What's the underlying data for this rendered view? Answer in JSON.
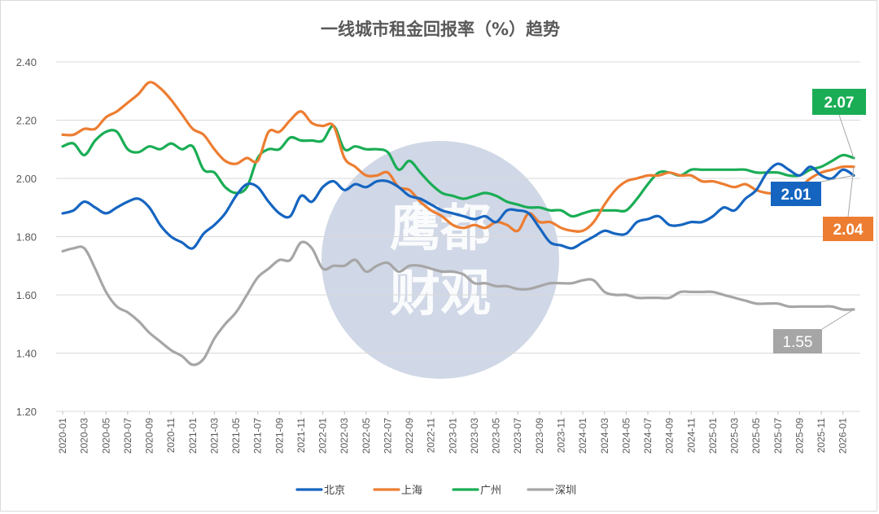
{
  "chart_data": {
    "type": "line",
    "title": "一线城市租金回报率（%）趋势",
    "ylim": [
      1.2,
      2.4
    ],
    "yticks": [
      "1.20",
      "1.40",
      "1.60",
      "1.80",
      "2.00",
      "2.20",
      "2.40"
    ],
    "grid": true,
    "legend_position": "bottom",
    "x": [
      "2020-01",
      "2020-02",
      "2020-03",
      "2020-04",
      "2020-05",
      "2020-06",
      "2020-07",
      "2020-08",
      "2020-09",
      "2020-10",
      "2020-11",
      "2020-12",
      "2021-01",
      "2021-02",
      "2021-03",
      "2021-04",
      "2021-05",
      "2021-06",
      "2021-07",
      "2021-08",
      "2021-09",
      "2021-10",
      "2021-11",
      "2021-12",
      "2022-01",
      "2022-02",
      "2022-03",
      "2022-04",
      "2022-05",
      "2022-06",
      "2022-07",
      "2022-08",
      "2022-09",
      "2022-10",
      "2022-11",
      "2022-12",
      "2023-01",
      "2023-02",
      "2023-03",
      "2023-04",
      "2023-05",
      "2023-06",
      "2023-07",
      "2023-08",
      "2023-09",
      "2023-10",
      "2023-11",
      "2023-12",
      "2024-01",
      "2024-02",
      "2024-03",
      "2024-04",
      "2024-05",
      "2024-06",
      "2024-07",
      "2024-08",
      "2024-09",
      "2024-10",
      "2024-11",
      "2024-12",
      "2025-01",
      "2025-02",
      "2025-03",
      "2025-04",
      "2025-05",
      "2025-06",
      "2025-07",
      "2025-08",
      "2025-09",
      "2025-10",
      "2025-11",
      "2025-12",
      "2026-01",
      "2026-02"
    ],
    "xtick_labels": [
      "2020-01",
      "2020-03",
      "2020-05",
      "2020-07",
      "2020-09",
      "2020-11",
      "2021-01",
      "2021-03",
      "2021-05",
      "2021-07",
      "2021-09",
      "2021-11",
      "2022-01",
      "2022-03",
      "2022-05",
      "2022-07",
      "2022-09",
      "2022-11",
      "2023-01",
      "2023-03",
      "2023-05",
      "2023-07",
      "2023-09",
      "2023-11",
      "2024-01",
      "2024-03",
      "2024-05",
      "2024-07",
      "2024-09",
      "2024-11",
      "2025-01",
      "2025-03",
      "2025-05",
      "2025-07",
      "2025-09",
      "2025-11",
      "2026-01"
    ],
    "series": [
      {
        "name": "北京",
        "color": "#1565c0",
        "end_label": "2.01",
        "values": [
          1.88,
          1.89,
          1.92,
          1.9,
          1.88,
          1.9,
          1.92,
          1.93,
          1.9,
          1.84,
          1.8,
          1.78,
          1.76,
          1.81,
          1.84,
          1.88,
          1.94,
          1.98,
          1.97,
          1.92,
          1.88,
          1.87,
          1.94,
          1.92,
          1.97,
          1.99,
          1.96,
          1.98,
          1.97,
          1.99,
          1.99,
          1.97,
          1.94,
          1.93,
          1.91,
          1.89,
          1.88,
          1.87,
          1.86,
          1.87,
          1.85,
          1.89,
          1.89,
          1.88,
          1.83,
          1.78,
          1.77,
          1.76,
          1.78,
          1.8,
          1.82,
          1.81,
          1.81,
          1.85,
          1.86,
          1.87,
          1.84,
          1.84,
          1.85,
          1.85,
          1.87,
          1.9,
          1.89,
          1.93,
          1.96,
          2.02,
          2.05,
          2.03,
          2.01,
          2.04,
          2.01,
          2.0,
          2.03,
          2.01
        ]
      },
      {
        "name": "上海",
        "color": "#ed7d31",
        "end_label": "2.04",
        "values": [
          2.15,
          2.15,
          2.17,
          2.17,
          2.21,
          2.23,
          2.26,
          2.29,
          2.33,
          2.31,
          2.27,
          2.22,
          2.17,
          2.15,
          2.1,
          2.06,
          2.05,
          2.07,
          2.06,
          2.16,
          2.16,
          2.2,
          2.23,
          2.19,
          2.18,
          2.18,
          2.07,
          2.04,
          2.01,
          2.01,
          2.02,
          1.97,
          1.96,
          1.92,
          1.89,
          1.87,
          1.84,
          1.83,
          1.84,
          1.83,
          1.85,
          1.84,
          1.82,
          1.88,
          1.85,
          1.85,
          1.83,
          1.82,
          1.82,
          1.85,
          1.91,
          1.96,
          1.99,
          2.0,
          2.01,
          2.01,
          2.02,
          2.01,
          2.01,
          1.99,
          1.99,
          1.98,
          1.97,
          1.98,
          1.96,
          1.95,
          1.95,
          1.96,
          1.97,
          2.0,
          2.02,
          2.03,
          2.04,
          2.04
        ]
      },
      {
        "name": "广州",
        "color": "#1aad55",
        "end_label": "2.07",
        "values": [
          2.11,
          2.12,
          2.08,
          2.13,
          2.16,
          2.16,
          2.1,
          2.09,
          2.11,
          2.1,
          2.12,
          2.1,
          2.11,
          2.03,
          2.02,
          1.97,
          1.95,
          1.97,
          2.07,
          2.1,
          2.1,
          2.14,
          2.13,
          2.13,
          2.13,
          2.18,
          2.1,
          2.11,
          2.1,
          2.1,
          2.09,
          2.03,
          2.06,
          2.02,
          1.98,
          1.95,
          1.94,
          1.93,
          1.94,
          1.95,
          1.94,
          1.92,
          1.91,
          1.9,
          1.9,
          1.89,
          1.89,
          1.87,
          1.88,
          1.89,
          1.89,
          1.89,
          1.89,
          1.93,
          1.98,
          2.02,
          2.02,
          2.01,
          2.03,
          2.03,
          2.03,
          2.03,
          2.03,
          2.03,
          2.02,
          2.02,
          2.02,
          2.01,
          2.01,
          2.03,
          2.04,
          2.06,
          2.08,
          2.07
        ]
      },
      {
        "name": "深圳",
        "color": "#a6a6a6",
        "end_label": "1.55",
        "values": [
          1.75,
          1.76,
          1.76,
          1.69,
          1.61,
          1.56,
          1.54,
          1.51,
          1.47,
          1.44,
          1.41,
          1.39,
          1.36,
          1.38,
          1.45,
          1.5,
          1.54,
          1.6,
          1.66,
          1.69,
          1.72,
          1.72,
          1.78,
          1.76,
          1.69,
          1.7,
          1.7,
          1.72,
          1.68,
          1.7,
          1.71,
          1.68,
          1.7,
          1.7,
          1.69,
          1.68,
          1.68,
          1.67,
          1.64,
          1.64,
          1.63,
          1.63,
          1.62,
          1.62,
          1.63,
          1.64,
          1.64,
          1.64,
          1.65,
          1.65,
          1.61,
          1.6,
          1.6,
          1.59,
          1.59,
          1.59,
          1.59,
          1.61,
          1.61,
          1.61,
          1.61,
          1.6,
          1.59,
          1.58,
          1.57,
          1.57,
          1.57,
          1.56,
          1.56,
          1.56,
          1.56,
          1.56,
          1.55,
          1.55
        ]
      }
    ]
  },
  "watermark": {
    "lines": [
      "鹰都",
      "财观"
    ],
    "color": "#c5cde0"
  }
}
